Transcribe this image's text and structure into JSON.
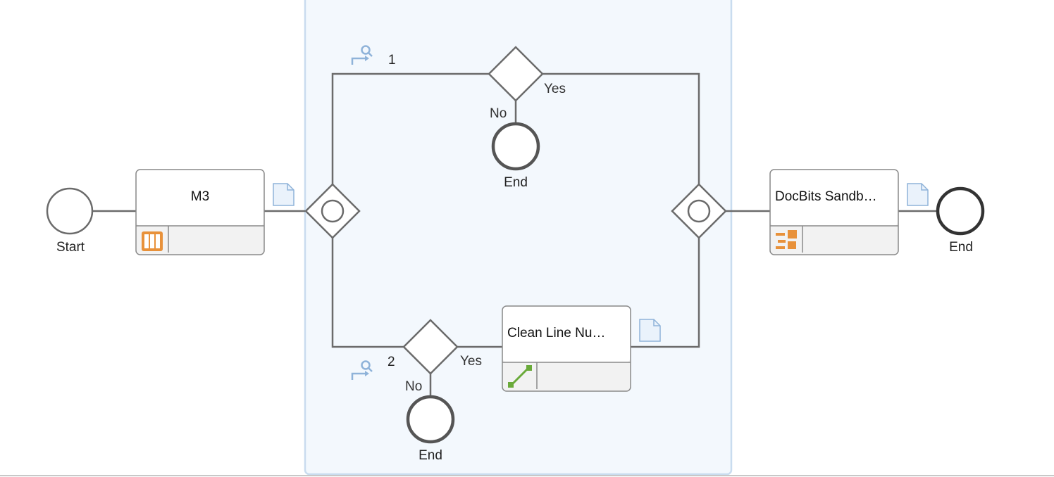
{
  "diagram": {
    "start_event": {
      "label": "Start"
    },
    "task_m3": {
      "title": "M3"
    },
    "task_clean": {
      "title": "Clean Line Nu…"
    },
    "task_docbits": {
      "title": "DocBits Sandb…"
    },
    "branch_1": {
      "label": "1",
      "decision_yes": "Yes",
      "decision_no": "No",
      "end_label": "End"
    },
    "branch_2": {
      "label": "2",
      "decision_yes": "Yes",
      "decision_no": "No",
      "end_label": "End"
    },
    "end_event": {
      "label": "End"
    }
  },
  "colors": {
    "subprocess_fill": "#f3f8fd",
    "subprocess_border": "#c9dcef",
    "edge": "#6b6b6b",
    "task_header": "#ffffff",
    "task_footer": "#f2f2f2",
    "icon_orange": "#e8913a",
    "icon_green": "#6aaa3a",
    "icon_blue": "#8fb3d9"
  }
}
